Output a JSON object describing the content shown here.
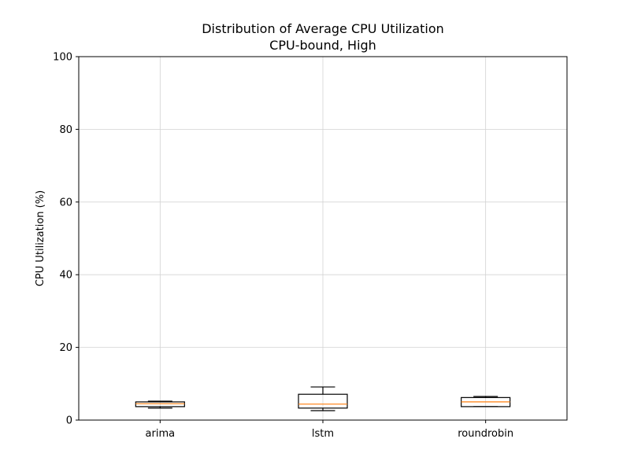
{
  "chart_data": {
    "type": "boxplot",
    "title": "Distribution of Average CPU Utilization",
    "subtitle": "CPU-bound, High",
    "xlabel": "",
    "ylabel": "CPU Utilization (%)",
    "ylim": [
      0,
      100
    ],
    "yticks": [
      0,
      20,
      40,
      60,
      80,
      100
    ],
    "grid": true,
    "categories": [
      "arima",
      "lstm",
      "roundrobin"
    ],
    "boxes": [
      {
        "category": "arima",
        "whisker_low": 3.3,
        "q1": 3.7,
        "median": 4.5,
        "q3": 5.0,
        "whisker_high": 5.2
      },
      {
        "category": "lstm",
        "whisker_low": 2.6,
        "q1": 3.3,
        "median": 4.4,
        "q3": 7.1,
        "whisker_high": 9.1
      },
      {
        "category": "roundrobin",
        "whisker_low": 3.7,
        "q1": 3.7,
        "median": 5.0,
        "q3": 6.2,
        "whisker_high": 6.5
      }
    ],
    "colors": {
      "box": "#000000",
      "median": "#ff7f0e",
      "grid": "#d3d3d3"
    }
  }
}
